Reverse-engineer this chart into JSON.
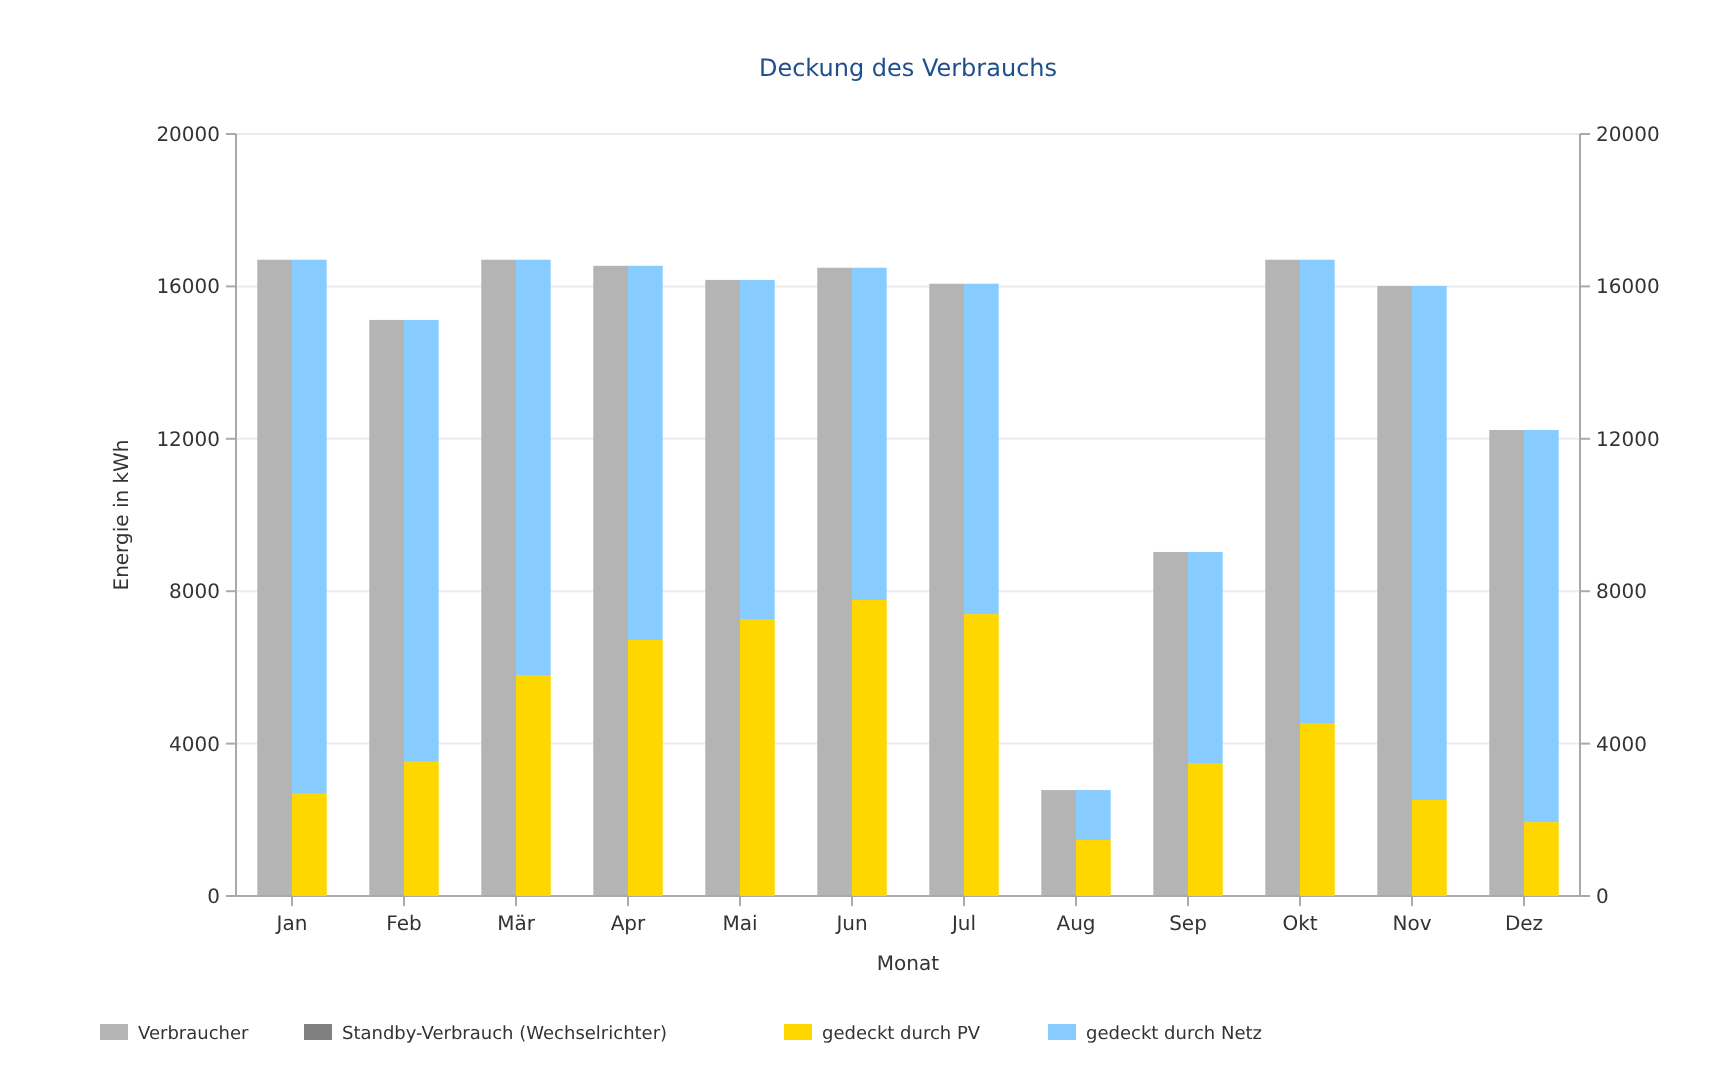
{
  "chart_data": [
    {
      "type": "bar",
      "title": "Deckung des Verbrauchs",
      "xlabel": "Monat",
      "ylabel": "Energie in kWh",
      "categories": [
        "Jan",
        "Feb",
        "Mär",
        "Apr",
        "Mai",
        "Jun",
        "Jul",
        "Aug",
        "Sep",
        "Okt",
        "Nov",
        "Dez"
      ],
      "stacked": true,
      "series": [
        {
          "name": "Verbraucher",
          "color": "#b4b4b4",
          "values": [
            16700,
            15120,
            16700,
            16540,
            16170,
            16490,
            16070,
            2780,
            9030,
            16700,
            16010,
            12230
          ]
        },
        {
          "name": "Standby-Verbrauch (Wechselrichter)",
          "color": "#808080",
          "values": [
            null,
            null,
            null,
            null,
            null,
            null,
            null,
            null,
            null,
            null,
            null,
            null
          ]
        }
      ],
      "ylim": [
        0,
        20000
      ],
      "yticks": [
        0,
        4000,
        8000,
        12000,
        16000,
        20000
      ],
      "grid": "y",
      "legend": "bottom left"
    },
    {
      "type": "bar",
      "categories": [
        null,
        null,
        null,
        null,
        null,
        null,
        null,
        null,
        null,
        null,
        null,
        null
      ],
      "stacked": true,
      "series": [
        {
          "name": "gedeckt durch PV",
          "color": "#ffd700",
          "values": [
            2680,
            3520,
            5780,
            6720,
            7250,
            7770,
            7400,
            1470,
            3470,
            4520,
            2520,
            1940
          ]
        },
        {
          "name": "gedeckt durch Netz",
          "color": "#88ccff",
          "values": [
            14020,
            11600,
            10920,
            9820,
            8920,
            8720,
            8670,
            1310,
            5560,
            12180,
            13490,
            10290
          ]
        }
      ],
      "ylim": [
        0,
        20000
      ],
      "yticks": [
        0,
        4000,
        8000,
        12000,
        16000,
        20000
      ],
      "tick_labels": "y",
      "legend": "bottom"
    }
  ]
}
